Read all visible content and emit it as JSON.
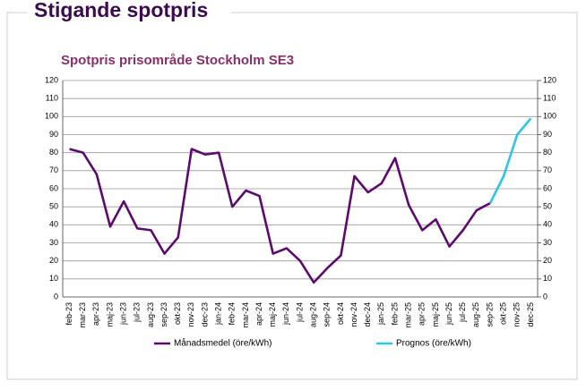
{
  "chart_data": {
    "type": "line",
    "title": "Stigande spotpris",
    "subtitle": "Spotpris prisområde Stockholm SE3",
    "categories": [
      "feb-23",
      "mar-23",
      "apr-23",
      "maj-23",
      "jun-23",
      "jul-23",
      "aug-23",
      "sep-23",
      "okt-23",
      "nov-23",
      "dec-23",
      "jan-24",
      "feb-24",
      "mar-24",
      "apr-24",
      "maj-24",
      "jun-24",
      "jul-24",
      "aug-24",
      "sep-24",
      "okt-24",
      "nov-24",
      "dec-24",
      "jan-25",
      "feb-25",
      "mar-25",
      "apr-25",
      "maj-25",
      "jun-25",
      "jul-25",
      "aug-25",
      "sep-25",
      "okt-25",
      "nov-25",
      "dec-25"
    ],
    "series": [
      {
        "name": "Månadsmedel (öre/kWh)",
        "color": "#5c0a6e",
        "values": [
          82,
          80,
          68,
          39,
          53,
          38,
          37,
          24,
          33,
          82,
          79,
          80,
          50,
          59,
          56,
          24,
          27,
          20,
          8,
          16,
          23,
          67,
          58,
          63,
          77,
          51,
          37,
          43,
          28,
          37,
          48,
          52,
          null,
          null,
          null
        ]
      },
      {
        "name": "Prognos (öre/kWh)",
        "color": "#2ec4e6",
        "values": [
          null,
          null,
          null,
          null,
          null,
          null,
          null,
          null,
          null,
          null,
          null,
          null,
          null,
          null,
          null,
          null,
          null,
          null,
          null,
          null,
          null,
          null,
          null,
          null,
          null,
          null,
          null,
          null,
          null,
          null,
          null,
          52,
          67,
          90,
          99
        ]
      }
    ],
    "ylim": [
      0,
      120
    ],
    "yticks": [
      0,
      10,
      20,
      30,
      40,
      50,
      60,
      70,
      80,
      90,
      100,
      110,
      120
    ],
    "y2lim": [
      0,
      120
    ],
    "y2ticks": [
      0,
      10,
      20,
      30,
      40,
      50,
      60,
      70,
      80,
      90,
      100,
      110,
      120
    ],
    "grid": true,
    "legend": "bottom"
  }
}
